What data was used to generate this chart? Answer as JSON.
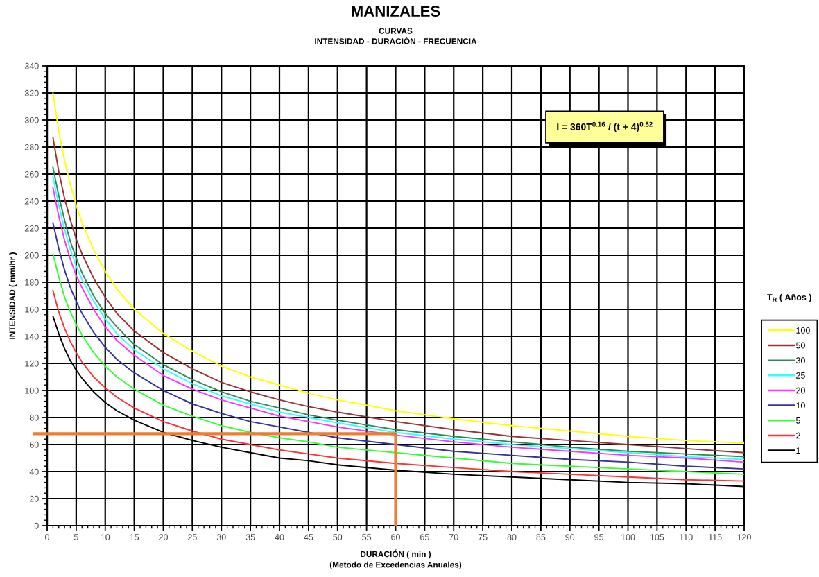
{
  "chart_data": {
    "type": "line",
    "title": "MANIZALES",
    "subtitle": "CURVAS\nINTENSIDAD - DURACIÓN - FRECUENCIA",
    "xlabel": "DURACIÓN ( min )\n(Metodo de Excedencias Anuales)",
    "ylabel": "INTENSIDAD ( mm/hr )",
    "legend_title": "T$_{R}$ ( Años )",
    "annotations": [
      "I = 360T$^{0.16}$ / (t + 4)$^{0.52}$"
    ],
    "x": [
      1,
      2,
      3,
      4,
      5,
      6,
      8,
      10,
      12,
      15,
      20,
      25,
      30,
      35,
      40,
      45,
      50,
      60,
      70,
      80,
      90,
      100,
      110,
      120
    ],
    "series": [
      {
        "name": "100",
        "color": "#ffff00",
        "values": [
          320,
          292,
          270,
          252,
          237,
          224,
          204,
          188,
          175,
          160,
          142,
          129,
          118,
          110,
          104,
          98,
          93,
          85,
          79,
          74,
          70,
          66,
          63,
          61
        ]
      },
      {
        "name": "50",
        "color": "#993333",
        "values": [
          287,
          262,
          242,
          226,
          212,
          201,
          183,
          169,
          157,
          144,
          128,
          116,
          106,
          99,
          93,
          88,
          84,
          77,
          71,
          66,
          63,
          60,
          57,
          54
        ]
      },
      {
        "name": "30",
        "color": "#2e8b57",
        "values": [
          265,
          244,
          226,
          210,
          198,
          187,
          170,
          157,
          147,
          134,
          119,
          108,
          99,
          92,
          87,
          82,
          78,
          71,
          66,
          62,
          58,
          55,
          53,
          51
        ]
      },
      {
        "name": "25",
        "color": "#33ffff",
        "values": [
          258,
          237,
          219,
          204,
          192,
          182,
          166,
          153,
          142,
          130,
          116,
          105,
          96,
          90,
          84,
          80,
          76,
          69,
          64,
          60,
          57,
          54,
          51,
          49
        ]
      },
      {
        "name": "20",
        "color": "#ff33ff",
        "values": [
          250,
          229,
          211,
          197,
          185,
          176,
          160,
          147,
          137,
          126,
          111,
          101,
          93,
          87,
          81,
          77,
          73,
          67,
          62,
          58,
          55,
          52,
          50,
          47
        ]
      },
      {
        "name": "10",
        "color": "#333399",
        "values": [
          224,
          205,
          189,
          176,
          166,
          157,
          143,
          132,
          123,
          113,
          100,
          90,
          83,
          77,
          73,
          69,
          65,
          60,
          55,
          52,
          49,
          47,
          44,
          42
        ]
      },
      {
        "name": "5",
        "color": "#33ff33",
        "values": [
          201,
          184,
          169,
          158,
          149,
          141,
          128,
          118,
          110,
          101,
          89,
          81,
          74,
          69,
          65,
          62,
          58,
          54,
          50,
          46,
          44,
          42,
          40,
          38
        ]
      },
      {
        "name": "2",
        "color": "#ff3333",
        "values": [
          174,
          158,
          146,
          136,
          128,
          121,
          110,
          102,
          95,
          87,
          77,
          70,
          64,
          60,
          56,
          53,
          50,
          46,
          43,
          40,
          38,
          36,
          34,
          33
        ]
      },
      {
        "name": "1",
        "color": "#000000",
        "values": [
          155,
          142,
          131,
          122,
          115,
          109,
          99,
          91,
          85,
          78,
          69,
          63,
          58,
          54,
          50,
          48,
          45,
          41,
          38,
          36,
          34,
          32,
          31,
          29
        ]
      }
    ],
    "xlim": [
      0,
      120
    ],
    "xticks": [
      0,
      5,
      10,
      15,
      20,
      25,
      30,
      35,
      40,
      45,
      50,
      55,
      60,
      65,
      70,
      75,
      80,
      85,
      90,
      95,
      100,
      105,
      110,
      115,
      120
    ],
    "ylim": [
      0,
      340
    ],
    "yticks": [
      0,
      20,
      40,
      60,
      80,
      100,
      120,
      140,
      160,
      180,
      200,
      220,
      240,
      260,
      280,
      300,
      320,
      340
    ],
    "grid": true,
    "legend": "right",
    "ref_lines": [
      {
        "axis": "y",
        "value": 68,
        "color": "#ed7d31"
      },
      {
        "axis": "x",
        "value": 60,
        "color": "#ed7d31"
      }
    ]
  }
}
